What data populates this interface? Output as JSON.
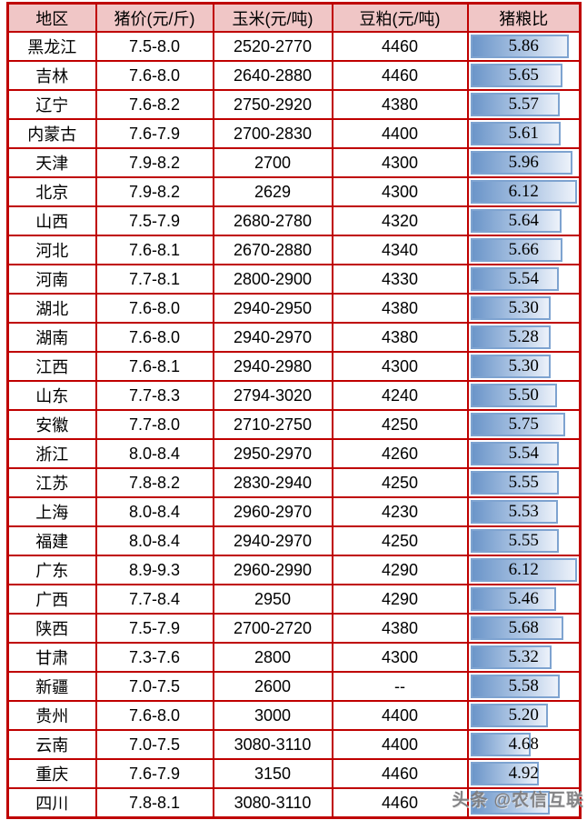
{
  "colors": {
    "border_color": "#bf0000",
    "header_bg": "#f0c6c6",
    "bar_start": "#6b95c9",
    "bar_mid": "#aec6e4",
    "bar_end": "#edf2fa",
    "bar_border": "#7ea3d0",
    "watermark_gray": "#7a7a7c",
    "text": "#000000"
  },
  "watermark": {
    "text": "头条 @农信互联"
  },
  "table": {
    "headers": [
      {
        "key": "region",
        "label": "地区"
      },
      {
        "key": "pig_price",
        "label": "猪价(元/斤)"
      },
      {
        "key": "corn",
        "label": "玉米(元/吨)"
      },
      {
        "key": "soybean",
        "label": "豆粕(元/吨)"
      },
      {
        "key": "ratio",
        "label": "猪粮比"
      }
    ],
    "ratio_bar": {
      "min_value": 4.68,
      "max_value": 6.12,
      "min_width_pct": 55,
      "max_width_pct": 97
    },
    "rows": [
      {
        "region": "黑龙江",
        "pig_price": "7.5-8.0",
        "corn": "2520-2770",
        "soybean": "4460",
        "ratio": "5.86"
      },
      {
        "region": "吉林",
        "pig_price": "7.6-8.0",
        "corn": "2640-2880",
        "soybean": "4460",
        "ratio": "5.65"
      },
      {
        "region": "辽宁",
        "pig_price": "7.6-8.2",
        "corn": "2750-2920",
        "soybean": "4380",
        "ratio": "5.57"
      },
      {
        "region": "内蒙古",
        "pig_price": "7.6-7.9",
        "corn": "2700-2830",
        "soybean": "4400",
        "ratio": "5.61"
      },
      {
        "region": "天津",
        "pig_price": "7.9-8.2",
        "corn": "2700",
        "soybean": "4300",
        "ratio": "5.96"
      },
      {
        "region": "北京",
        "pig_price": "7.9-8.2",
        "corn": "2629",
        "soybean": "4300",
        "ratio": "6.12"
      },
      {
        "region": "山西",
        "pig_price": "7.5-7.9",
        "corn": "2680-2780",
        "soybean": "4320",
        "ratio": "5.64"
      },
      {
        "region": "河北",
        "pig_price": "7.6-8.1",
        "corn": "2670-2880",
        "soybean": "4340",
        "ratio": "5.66"
      },
      {
        "region": "河南",
        "pig_price": "7.7-8.1",
        "corn": "2800-2900",
        "soybean": "4330",
        "ratio": "5.54"
      },
      {
        "region": "湖北",
        "pig_price": "7.6-8.0",
        "corn": "2940-2950",
        "soybean": "4380",
        "ratio": "5.30"
      },
      {
        "region": "湖南",
        "pig_price": "7.6-8.0",
        "corn": "2940-2970",
        "soybean": "4380",
        "ratio": "5.28"
      },
      {
        "region": "江西",
        "pig_price": "7.6-8.1",
        "corn": "2940-2980",
        "soybean": "4300",
        "ratio": "5.30"
      },
      {
        "region": "山东",
        "pig_price": "7.7-8.3",
        "corn": "2794-3020",
        "soybean": "4240",
        "ratio": "5.50"
      },
      {
        "region": "安徽",
        "pig_price": "7.7-8.0",
        "corn": "2710-2750",
        "soybean": "4250",
        "ratio": "5.75"
      },
      {
        "region": "浙江",
        "pig_price": "8.0-8.4",
        "corn": "2950-2970",
        "soybean": "4260",
        "ratio": "5.54"
      },
      {
        "region": "江苏",
        "pig_price": "7.8-8.2",
        "corn": "2830-2940",
        "soybean": "4250",
        "ratio": "5.55"
      },
      {
        "region": "上海",
        "pig_price": "8.0-8.4",
        "corn": "2960-2970",
        "soybean": "4230",
        "ratio": "5.53"
      },
      {
        "region": "福建",
        "pig_price": "8.0-8.4",
        "corn": "2940-2970",
        "soybean": "4250",
        "ratio": "5.55"
      },
      {
        "region": "广东",
        "pig_price": "8.9-9.3",
        "corn": "2960-2990",
        "soybean": "4290",
        "ratio": "6.12"
      },
      {
        "region": "广西",
        "pig_price": "7.7-8.4",
        "corn": "2950",
        "soybean": "4290",
        "ratio": "5.46"
      },
      {
        "region": "陕西",
        "pig_price": "7.5-7.9",
        "corn": "2700-2720",
        "soybean": "4380",
        "ratio": "5.68"
      },
      {
        "region": "甘肃",
        "pig_price": "7.3-7.6",
        "corn": "2800",
        "soybean": "4300",
        "ratio": "5.32"
      },
      {
        "region": "新疆",
        "pig_price": "7.0-7.5",
        "corn": "2600",
        "soybean": "--",
        "ratio": "5.58"
      },
      {
        "region": "贵州",
        "pig_price": "7.6-8.0",
        "corn": "3000",
        "soybean": "4400",
        "ratio": "5.20"
      },
      {
        "region": "云南",
        "pig_price": "7.0-7.5",
        "corn": "3080-3110",
        "soybean": "4400",
        "ratio": "4.68"
      },
      {
        "region": "重庆",
        "pig_price": "7.6-7.9",
        "corn": "3150",
        "soybean": "4460",
        "ratio": "4.92"
      },
      {
        "region": "四川",
        "pig_price": "7.8-8.1",
        "corn": "3080-3110",
        "soybean": "4460",
        "ratio": "",
        "ratio_bar_pct": 72
      }
    ]
  },
  "chart_data": {
    "type": "table",
    "title": "",
    "columns": [
      "地区",
      "猪价(元/斤)",
      "玉米(元/吨)",
      "豆粕(元/吨)",
      "猪粮比"
    ],
    "rows": [
      [
        "黑龙江",
        "7.5-8.0",
        "2520-2770",
        "4460",
        "5.86"
      ],
      [
        "吉林",
        "7.6-8.0",
        "2640-2880",
        "4460",
        "5.65"
      ],
      [
        "辽宁",
        "7.6-8.2",
        "2750-2920",
        "4380",
        "5.57"
      ],
      [
        "内蒙古",
        "7.6-7.9",
        "2700-2830",
        "4400",
        "5.61"
      ],
      [
        "天津",
        "7.9-8.2",
        "2700",
        "4300",
        "5.96"
      ],
      [
        "北京",
        "7.9-8.2",
        "2629",
        "4300",
        "6.12"
      ],
      [
        "山西",
        "7.5-7.9",
        "2680-2780",
        "4320",
        "5.64"
      ],
      [
        "河北",
        "7.6-8.1",
        "2670-2880",
        "4340",
        "5.66"
      ],
      [
        "河南",
        "7.7-8.1",
        "2800-2900",
        "4330",
        "5.54"
      ],
      [
        "湖北",
        "7.6-8.0",
        "2940-2950",
        "4380",
        "5.30"
      ],
      [
        "湖南",
        "7.6-8.0",
        "2940-2970",
        "4380",
        "5.28"
      ],
      [
        "江西",
        "7.6-8.1",
        "2940-2980",
        "4300",
        "5.30"
      ],
      [
        "山东",
        "7.7-8.3",
        "2794-3020",
        "4240",
        "5.50"
      ],
      [
        "安徽",
        "7.7-8.0",
        "2710-2750",
        "4250",
        "5.75"
      ],
      [
        "浙江",
        "8.0-8.4",
        "2950-2970",
        "4260",
        "5.54"
      ],
      [
        "江苏",
        "7.8-8.2",
        "2830-2940",
        "4250",
        "5.55"
      ],
      [
        "上海",
        "8.0-8.4",
        "2960-2970",
        "4230",
        "5.53"
      ],
      [
        "福建",
        "8.0-8.4",
        "2940-2970",
        "4250",
        "5.55"
      ],
      [
        "广东",
        "8.9-9.3",
        "2960-2990",
        "4290",
        "6.12"
      ],
      [
        "广西",
        "7.7-8.4",
        "2950",
        "4290",
        "5.46"
      ],
      [
        "陕西",
        "7.5-7.9",
        "2700-2720",
        "4380",
        "5.68"
      ],
      [
        "甘肃",
        "7.3-7.6",
        "2800",
        "4300",
        "5.32"
      ],
      [
        "新疆",
        "7.0-7.5",
        "2600",
        "--",
        "5.58"
      ],
      [
        "贵州",
        "7.6-8.0",
        "3000",
        "4400",
        "5.20"
      ],
      [
        "云南",
        "7.0-7.5",
        "3080-3110",
        "4400",
        "4.68"
      ],
      [
        "重庆",
        "7.6-7.9",
        "3150",
        "4460",
        "4.92"
      ],
      [
        "四川",
        "7.8-8.1",
        "3080-3110",
        "4460",
        ""
      ]
    ],
    "notes": {
      "ratio_column_style": "gradient data bars, blue, scaled between min 4.68 and max 6.12",
      "last_row_ratio": "value obscured by watermark 头条 @农信互联"
    }
  }
}
